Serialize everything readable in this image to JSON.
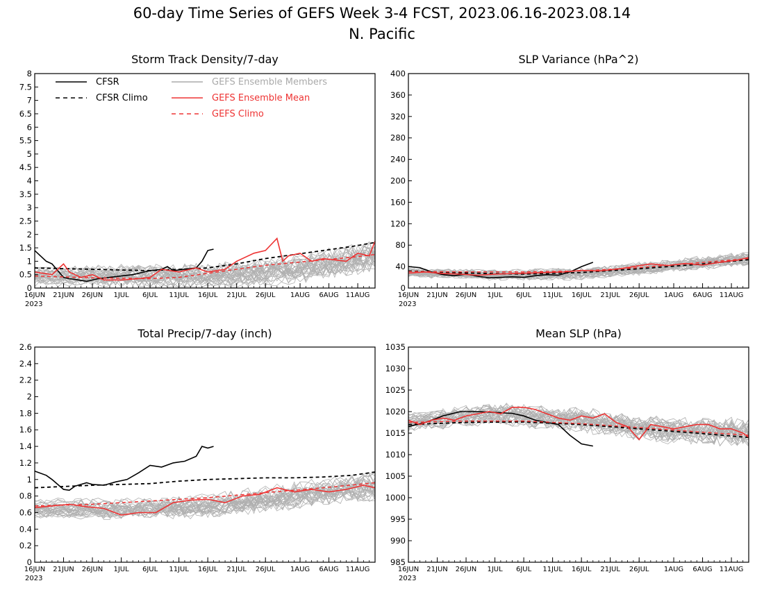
{
  "figure": {
    "title_line1": "60-day Time Series of GEFS Week 3-4 FCST, 2023.06.16-2023.08.14",
    "title_line2": "N. Pacific"
  },
  "legend": {
    "items": [
      {
        "label": "CFSR",
        "color": "#000000",
        "dash": false
      },
      {
        "label": "CFSR Climo",
        "color": "#000000",
        "dash": true
      },
      {
        "label": "GEFS Ensemble Members",
        "color": "#aaaaaa",
        "dash": false
      },
      {
        "label": "GEFS Ensemble Mean",
        "color": "#ee3333",
        "dash": false
      },
      {
        "label": "GEFS Climo",
        "color": "#ee3333",
        "dash": true
      }
    ]
  },
  "chart_data": [
    {
      "type": "line",
      "title": "Storm Track Density/7-day",
      "ylim": [
        0,
        8
      ],
      "yticks": [
        0,
        0.5,
        1,
        1.5,
        2,
        2.5,
        3,
        3.5,
        4,
        4.5,
        5,
        5.5,
        6,
        6.5,
        7,
        7.5,
        8
      ],
      "xlim": [
        0,
        59
      ],
      "xtick_labels": [
        "16JUN",
        "21JUN",
        "26JUN",
        "1JUL",
        "6JUL",
        "11JUL",
        "16JUL",
        "21JUL",
        "26JUL",
        "1AUG",
        "6AUG",
        "11AUG"
      ],
      "xtick_day": [
        0,
        5,
        10,
        15,
        20,
        25,
        30,
        35,
        40,
        46,
        51,
        56
      ],
      "year_label": "2023",
      "members": {
        "count": 30,
        "note": "ensemble spread",
        "base": [
          0.45,
          0.45,
          0.45,
          0.7,
          1.2
        ],
        "noise": 0.6
      },
      "series": [
        {
          "name": "CFSR",
          "x": [
            0,
            2,
            3,
            5,
            6,
            7,
            9,
            10,
            11,
            13,
            15,
            17,
            20,
            22,
            23,
            24,
            26,
            28,
            29,
            30,
            31
          ],
          "values": [
            1.4,
            1.0,
            0.9,
            0.4,
            0.35,
            0.32,
            0.25,
            0.3,
            0.35,
            0.4,
            0.45,
            0.5,
            0.65,
            0.7,
            0.8,
            0.65,
            0.7,
            0.75,
            1.0,
            1.4,
            1.45
          ]
        },
        {
          "name": "CFSR Climo",
          "x": [
            0,
            10,
            20,
            25,
            30,
            35,
            40,
            45,
            50,
            55,
            59
          ],
          "values": [
            0.75,
            0.7,
            0.65,
            0.7,
            0.75,
            0.9,
            1.1,
            1.25,
            1.4,
            1.55,
            1.7
          ]
        },
        {
          "name": "GEFS Ensemble Mean",
          "x": [
            0,
            3,
            5,
            6,
            8,
            10,
            12,
            15,
            18,
            20,
            22,
            25,
            28,
            30,
            33,
            35,
            38,
            40,
            42,
            43,
            44,
            46,
            48,
            50,
            52,
            54,
            56,
            58,
            59
          ],
          "values": [
            0.6,
            0.5,
            0.9,
            0.6,
            0.4,
            0.5,
            0.3,
            0.3,
            0.35,
            0.4,
            0.7,
            0.6,
            0.75,
            0.6,
            0.7,
            1.0,
            1.3,
            1.4,
            1.85,
            1.0,
            1.2,
            1.3,
            1.0,
            1.1,
            1.05,
            1.0,
            1.3,
            1.2,
            1.75
          ]
        },
        {
          "name": "GEFS Climo",
          "x": [
            0,
            10,
            20,
            25,
            30,
            35,
            40,
            45,
            50,
            55,
            59
          ],
          "values": [
            0.45,
            0.38,
            0.35,
            0.4,
            0.55,
            0.7,
            0.85,
            0.95,
            1.05,
            1.15,
            1.25
          ]
        }
      ]
    },
    {
      "type": "line",
      "title": "SLP Variance (hPa^2)",
      "ylim": [
        0,
        400
      ],
      "yticks": [
        0,
        40,
        80,
        120,
        160,
        200,
        240,
        280,
        320,
        360,
        400
      ],
      "xlim": [
        0,
        59
      ],
      "xtick_labels": [
        "16JUN",
        "21JUN",
        "26JUN",
        "1JUL",
        "6JUL",
        "11JUL",
        "16JUL",
        "21JUL",
        "26JUL",
        "1AUG",
        "6AUG",
        "11AUG"
      ],
      "xtick_day": [
        0,
        5,
        10,
        15,
        20,
        25,
        30,
        35,
        40,
        46,
        51,
        56
      ],
      "year_label": "2023",
      "members": {
        "count": 30,
        "note": "ensemble spread",
        "base": [
          28,
          24,
          26,
          40,
          55
        ],
        "noise": 14
      },
      "series": [
        {
          "name": "CFSR",
          "x": [
            0,
            2,
            4,
            6,
            8,
            10,
            12,
            14,
            16,
            18,
            20,
            22,
            24,
            26,
            28,
            30,
            32
          ],
          "values": [
            40,
            38,
            30,
            25,
            23,
            26,
            22,
            19,
            20,
            21,
            20,
            23,
            25,
            24,
            30,
            40,
            48
          ]
        },
        {
          "name": "CFSR Climo",
          "x": [
            0,
            10,
            20,
            30,
            40,
            50,
            59
          ],
          "values": [
            32,
            28,
            26,
            29,
            36,
            44,
            53
          ]
        },
        {
          "name": "GEFS Ensemble Mean",
          "x": [
            0,
            3,
            6,
            9,
            12,
            15,
            18,
            21,
            24,
            27,
            30,
            33,
            36,
            39,
            42,
            45,
            48,
            51,
            54,
            57,
            59
          ],
          "values": [
            28,
            30,
            27,
            26,
            24,
            26,
            27,
            28,
            29,
            30,
            33,
            32,
            35,
            40,
            45,
            42,
            46,
            43,
            48,
            52,
            57
          ]
        },
        {
          "name": "GEFS Climo",
          "x": [
            0,
            10,
            20,
            30,
            40,
            50,
            59
          ],
          "values": [
            31,
            30,
            30,
            32,
            38,
            47,
            55
          ]
        }
      ]
    },
    {
      "type": "line",
      "title": "Total Precip/7-day (inch)",
      "ylim": [
        0,
        2.6
      ],
      "yticks": [
        0,
        0.2,
        0.4,
        0.6,
        0.8,
        1,
        1.2,
        1.4,
        1.6,
        1.8,
        2,
        2.2,
        2.4,
        2.6
      ],
      "xlim": [
        0,
        59
      ],
      "xtick_labels": [
        "16JUN",
        "21JUN",
        "26JUN",
        "1JUL",
        "6JUL",
        "11JUL",
        "16JUL",
        "21JUL",
        "26JUL",
        "1AUG",
        "6AUG",
        "11AUG"
      ],
      "xtick_day": [
        0,
        5,
        10,
        15,
        20,
        25,
        30,
        35,
        40,
        46,
        51,
        56
      ],
      "year_label": "2023",
      "members": {
        "count": 30,
        "note": "ensemble spread",
        "base": [
          0.65,
          0.65,
          0.68,
          0.8,
          0.92
        ],
        "noise": 0.18
      },
      "series": [
        {
          "name": "CFSR",
          "x": [
            0,
            2,
            3,
            5,
            6,
            7,
            9,
            10,
            12,
            14,
            16,
            18,
            20,
            22,
            24,
            26,
            28,
            29,
            30,
            31
          ],
          "values": [
            1.1,
            1.05,
            1.0,
            0.88,
            0.87,
            0.92,
            0.96,
            0.94,
            0.93,
            0.97,
            1.0,
            1.08,
            1.17,
            1.15,
            1.2,
            1.22,
            1.28,
            1.4,
            1.38,
            1.4
          ]
        },
        {
          "name": "CFSR Climo",
          "x": [
            0,
            10,
            20,
            25,
            30,
            35,
            40,
            45,
            50,
            55,
            59
          ],
          "values": [
            0.9,
            0.93,
            0.95,
            0.98,
            1.0,
            1.01,
            1.02,
            1.02,
            1.03,
            1.05,
            1.09
          ]
        },
        {
          "name": "GEFS Ensemble Mean",
          "x": [
            0,
            3,
            6,
            9,
            12,
            15,
            18,
            21,
            24,
            27,
            30,
            33,
            36,
            39,
            42,
            45,
            48,
            51,
            54,
            57,
            59
          ],
          "values": [
            0.66,
            0.68,
            0.7,
            0.67,
            0.65,
            0.57,
            0.6,
            0.6,
            0.72,
            0.75,
            0.76,
            0.72,
            0.8,
            0.82,
            0.9,
            0.85,
            0.88,
            0.85,
            0.88,
            0.93,
            0.9
          ]
        },
        {
          "name": "GEFS Climo",
          "x": [
            0,
            10,
            20,
            30,
            40,
            50,
            59
          ],
          "values": [
            0.68,
            0.7,
            0.74,
            0.78,
            0.84,
            0.9,
            0.96
          ]
        }
      ]
    },
    {
      "type": "line",
      "title": "Mean SLP (hPa)",
      "ylim": [
        985,
        1035
      ],
      "yticks": [
        985,
        990,
        995,
        1000,
        1005,
        1010,
        1015,
        1020,
        1025,
        1030,
        1035
      ],
      "xlim": [
        0,
        59
      ],
      "xtick_labels": [
        "16JUN",
        "21JUN",
        "26JUN",
        "1JUL",
        "6JUL",
        "11JUL",
        "16JUL",
        "21JUL",
        "26JUL",
        "1AUG",
        "6AUG",
        "11AUG"
      ],
      "xtick_day": [
        0,
        5,
        10,
        15,
        20,
        25,
        30,
        35,
        40,
        46,
        51,
        56
      ],
      "year_label": "2023",
      "members": {
        "count": 30,
        "note": "ensemble spread",
        "base": [
          1017.5,
          1019.5,
          1018,
          1015.5,
          1015
        ],
        "noise": 3.5
      },
      "series": [
        {
          "name": "CFSR",
          "x": [
            0,
            3,
            6,
            9,
            12,
            15,
            18,
            20,
            22,
            24,
            26,
            28,
            30,
            32
          ],
          "values": [
            1016.5,
            1017.5,
            1019,
            1020,
            1020,
            1019.8,
            1019.6,
            1019,
            1018,
            1017.5,
            1017,
            1014.5,
            1012.5,
            1012
          ]
        },
        {
          "name": "CFSR Climo",
          "x": [
            0,
            10,
            20,
            30,
            40,
            50,
            59
          ],
          "values": [
            1017,
            1017.5,
            1017.6,
            1017,
            1016,
            1015,
            1014
          ]
        },
        {
          "name": "GEFS Ensemble Mean",
          "x": [
            0,
            2,
            4,
            6,
            8,
            10,
            12,
            14,
            16,
            18,
            20,
            22,
            24,
            26,
            28,
            30,
            32,
            34,
            36,
            38,
            40,
            42,
            44,
            46,
            48,
            50,
            52,
            54,
            56,
            58,
            59
          ],
          "values": [
            1018,
            1017,
            1018,
            1018.5,
            1018,
            1019,
            1019.5,
            1020,
            1019.5,
            1021,
            1021,
            1020.5,
            1019.5,
            1018.5,
            1018,
            1019,
            1018.5,
            1019.5,
            1017.5,
            1016.5,
            1013.5,
            1017,
            1016.5,
            1016,
            1016.5,
            1017,
            1017,
            1016,
            1016,
            1015,
            1014
          ]
        },
        {
          "name": "GEFS Climo",
          "x": [
            0,
            10,
            20,
            30,
            40,
            50,
            59
          ],
          "values": [
            1017.5,
            1017.8,
            1017.8,
            1017.2,
            1016.3,
            1015.3,
            1014.5
          ]
        }
      ]
    }
  ]
}
